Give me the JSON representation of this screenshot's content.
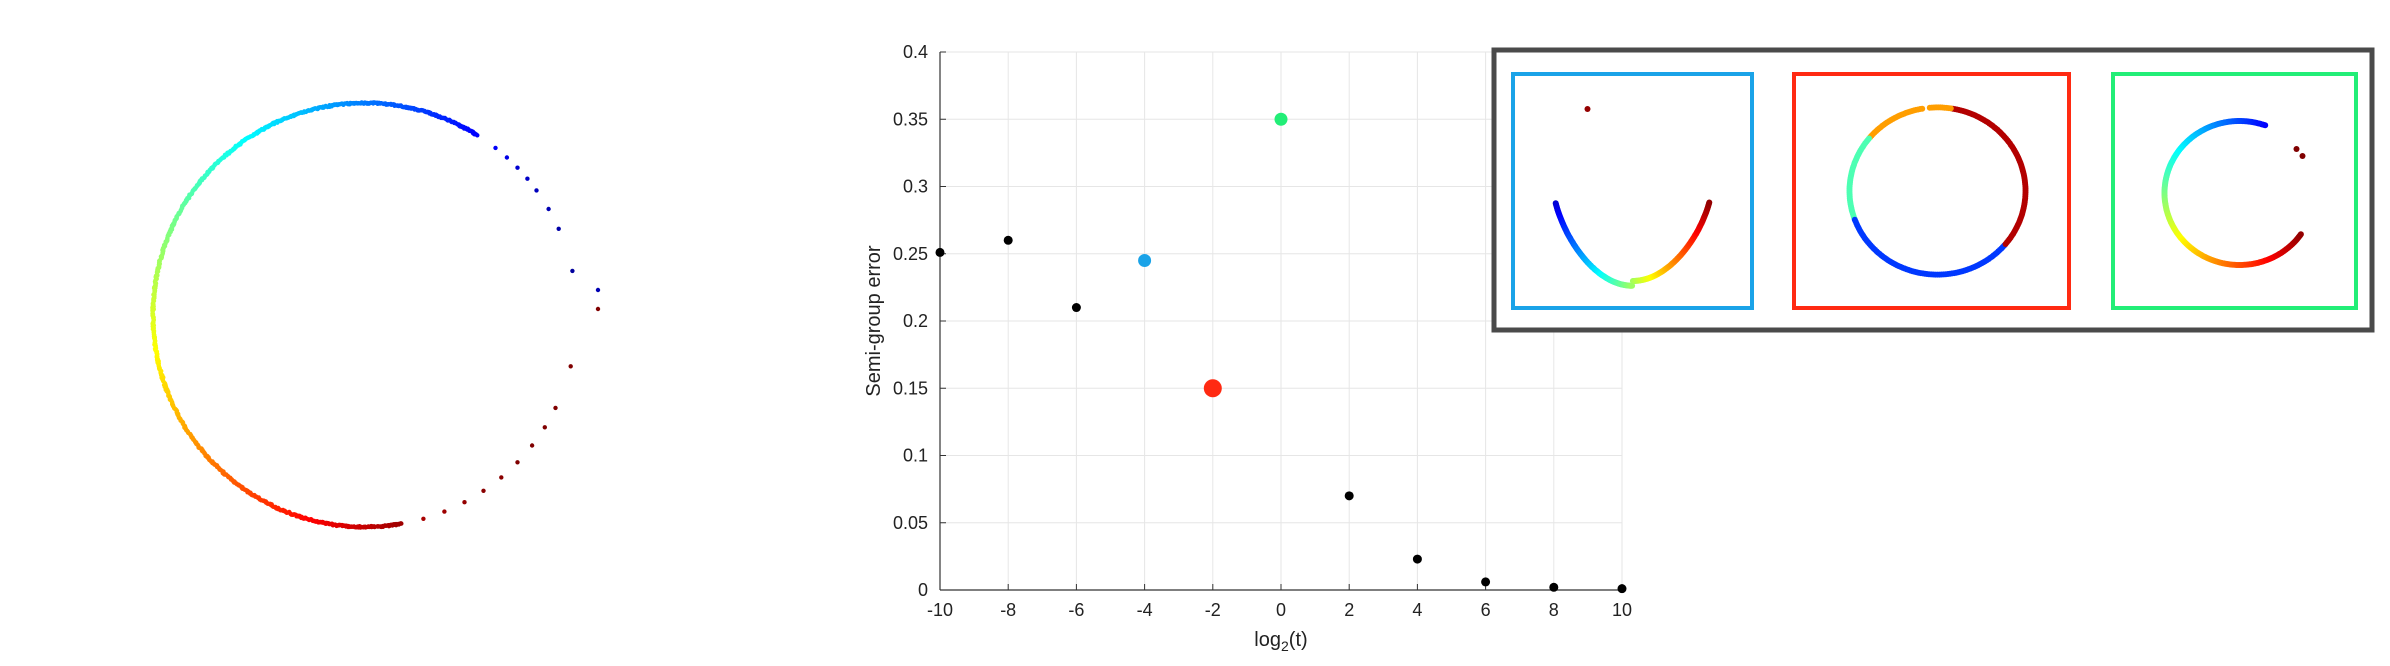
{
  "chart_data": [
    {
      "type": "scatter",
      "title": "",
      "description_label": "",
      "points": []
    },
    {
      "type": "scatter",
      "title": "",
      "xlabel_base": "log",
      "xlabel_sub": "2",
      "xlabel_rest": "(t)",
      "ylabel": "Semi-group error",
      "xlim": [
        -10,
        10
      ],
      "ylim": [
        0,
        0.4
      ],
      "xticks": [
        -10,
        -8,
        -6,
        -4,
        -2,
        0,
        2,
        4,
        6,
        8,
        10
      ],
      "yticks": [
        0,
        0.05,
        0.1,
        0.15,
        0.2,
        0.25,
        0.3,
        0.35,
        0.4
      ],
      "ytick_labels": [
        "0",
        "0.05",
        "0.1",
        "0.15",
        "0.2",
        "0.25",
        "0.3",
        "0.35",
        "0.4"
      ],
      "xtick_labels": [
        "-10",
        "-8",
        "-6",
        "-4",
        "-2",
        "0",
        "2",
        "4",
        "6",
        "8",
        "10"
      ],
      "grid": true,
      "points": [
        {
          "x": -10,
          "y": 0.251,
          "color": "#000000",
          "size": "small"
        },
        {
          "x": -8,
          "y": 0.26,
          "color": "#000000",
          "size": "small"
        },
        {
          "x": -6,
          "y": 0.21,
          "color": "#000000",
          "size": "small"
        },
        {
          "x": -4,
          "y": 0.245,
          "color": "#1aa3e8",
          "size": "medium"
        },
        {
          "x": -2,
          "y": 0.15,
          "color": "#ff2a12",
          "size": "large"
        },
        {
          "x": 0,
          "y": 0.35,
          "color": "#22ee77",
          "size": "medium"
        },
        {
          "x": 2,
          "y": 0.07,
          "color": "#000000",
          "size": "small"
        },
        {
          "x": 4,
          "y": 0.023,
          "color": "#000000",
          "size": "small"
        },
        {
          "x": 6,
          "y": 0.006,
          "color": "#000000",
          "size": "small"
        },
        {
          "x": 8,
          "y": 0.002,
          "color": "#000000",
          "size": "small"
        },
        {
          "x": 10,
          "y": 0.001,
          "color": "#000000",
          "size": "small"
        }
      ]
    }
  ],
  "insets": [
    {
      "name": "inset-t-minus4",
      "frame_color": "#1aa3e8",
      "shape": "u-curve"
    },
    {
      "name": "inset-t-minus2",
      "frame_color": "#ff2a12",
      "shape": "closed-loop"
    },
    {
      "name": "inset-t-0",
      "frame_color": "#22ee77",
      "shape": "open-loop"
    }
  ],
  "inset_panel_border_color": "#4a4a4a"
}
